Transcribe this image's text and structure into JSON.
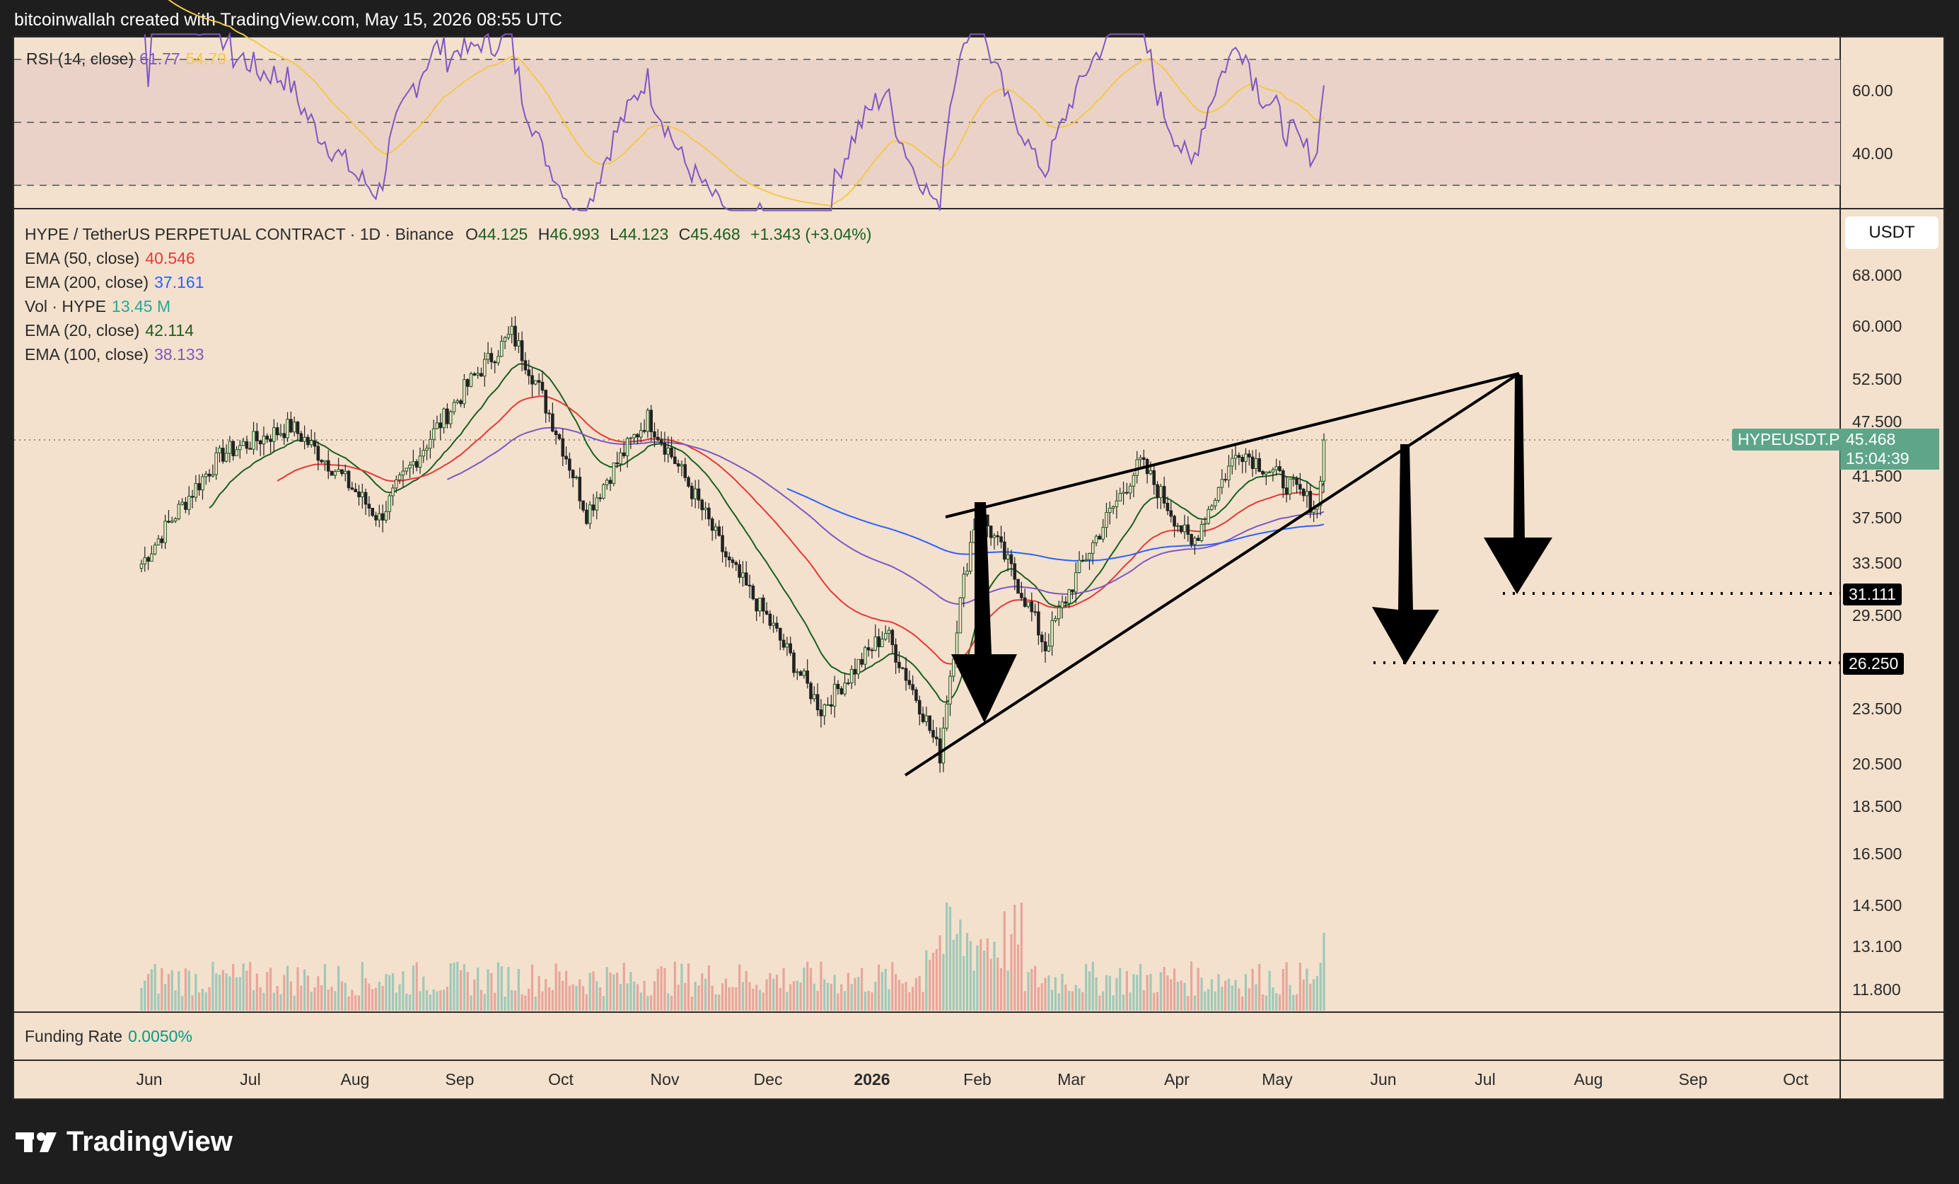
{
  "header": {
    "text": "bitcoinwallah created with TradingView.com, May 15, 2026 08:55 UTC"
  },
  "rsi": {
    "label": "RSI (14, close)",
    "value": "61.77",
    "ma_value": "54.79",
    "ticks": [
      "60.00",
      "40.00"
    ],
    "levels": [
      70,
      50,
      30
    ],
    "color": "#7e57c2",
    "ma_color": "#f2c94c"
  },
  "legend": {
    "symbol": "HYPE / TetherUS PERPETUAL CONTRACT · 1D · Binance",
    "open_label": "O",
    "open": "44.125",
    "high_label": "H",
    "high": "46.993",
    "low_label": "L",
    "low": "44.123",
    "close_label": "C",
    "close": "45.468",
    "change": "+1.343 (+3.04%)",
    "indicators": [
      {
        "label": "EMA (50, close)",
        "value": "40.546",
        "color": "#e53935"
      },
      {
        "label": "EMA (200, close)",
        "value": "37.161",
        "color": "#2962ff"
      },
      {
        "label": "Vol · HYPE",
        "value": "13.45 M",
        "color": "#26a69a"
      },
      {
        "label": "EMA (20, close)",
        "value": "42.114",
        "color": "#1b5e20"
      },
      {
        "label": "EMA (100, close)",
        "value": "38.133",
        "color": "#7e57c2"
      }
    ]
  },
  "price_axis": {
    "currency_button": "USDT",
    "ticks": [
      "68.000",
      "60.000",
      "52.500",
      "47.500",
      "41.500",
      "37.500",
      "33.500",
      "29.500",
      "23.500",
      "20.500",
      "18.500",
      "16.500",
      "14.500",
      "13.100",
      "11.800"
    ],
    "last_price_tag": {
      "symbol": "HYPEUSDT.P",
      "price": "45.468",
      "countdown": "15:04:39",
      "color": "#5fa58a"
    },
    "targets": [
      "31.111",
      "26.250"
    ]
  },
  "funding": {
    "label": "Funding Rate",
    "value": "0.0050%",
    "color": "#089981"
  },
  "time_axis": {
    "labels": [
      {
        "text": "Jun",
        "bold": false
      },
      {
        "text": "Jul",
        "bold": false
      },
      {
        "text": "Aug",
        "bold": false
      },
      {
        "text": "Sep",
        "bold": false
      },
      {
        "text": "Oct",
        "bold": false
      },
      {
        "text": "Nov",
        "bold": false
      },
      {
        "text": "Dec",
        "bold": false
      },
      {
        "text": "2026",
        "bold": true
      },
      {
        "text": "Feb",
        "bold": false
      },
      {
        "text": "Mar",
        "bold": false
      },
      {
        "text": "Apr",
        "bold": false
      },
      {
        "text": "May",
        "bold": false
      },
      {
        "text": "Jun",
        "bold": false
      },
      {
        "text": "Jul",
        "bold": false
      },
      {
        "text": "Aug",
        "bold": false
      },
      {
        "text": "Sep",
        "bold": false
      },
      {
        "text": "Oct",
        "bold": false
      }
    ]
  },
  "chart_data": {
    "type": "candlestick",
    "ylim": [
      11.8,
      68
    ],
    "last": {
      "open": 44.125,
      "high": 46.993,
      "low": 44.123,
      "close": 45.468,
      "change": 1.343,
      "change_pct": 3.04
    },
    "key_price_path": [
      {
        "x": "2025-06-01",
        "y": 33.5
      },
      {
        "x": "2025-06-25",
        "y": 44
      },
      {
        "x": "2025-07-15",
        "y": 47
      },
      {
        "x": "2025-08-10",
        "y": 37.5
      },
      {
        "x": "2025-09-18",
        "y": 59
      },
      {
        "x": "2025-10-10",
        "y": 38
      },
      {
        "x": "2025-10-28",
        "y": 48
      },
      {
        "x": "2025-11-21",
        "y": 33.5
      },
      {
        "x": "2025-12-18",
        "y": 23.5
      },
      {
        "x": "2026-01-06",
        "y": 28.5
      },
      {
        "x": "2026-01-22",
        "y": 21
      },
      {
        "x": "2026-02-02",
        "y": 38.5
      },
      {
        "x": "2026-02-22",
        "y": 27.5
      },
      {
        "x": "2026-03-22",
        "y": 43
      },
      {
        "x": "2026-04-06",
        "y": 35
      },
      {
        "x": "2026-04-20",
        "y": 44.5
      },
      {
        "x": "2026-05-13",
        "y": 38.5
      },
      {
        "x": "2026-05-15",
        "y": 45.468
      }
    ],
    "pattern": "rising wedge",
    "targets": [
      31.111,
      26.25
    ],
    "rsi_last": 61.77,
    "rsi_ma_last": 54.79,
    "funding_rate": "0.0050%"
  }
}
